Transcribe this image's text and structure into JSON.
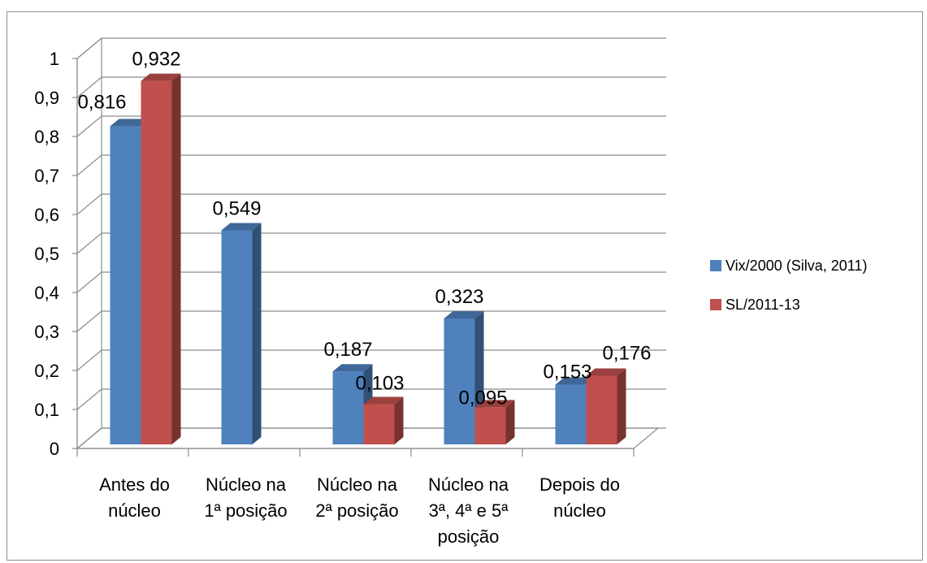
{
  "chart_data": {
    "type": "bar",
    "title": "",
    "xlabel": "",
    "ylabel": "",
    "ylim": [
      0,
      1
    ],
    "yticks": [
      "0",
      "0,1",
      "0,2",
      "0,3",
      "0,4",
      "0,5",
      "0,6",
      "0,7",
      "0,8",
      "0,9",
      "1"
    ],
    "categories": [
      [
        "Antes do",
        "núcleo"
      ],
      [
        "Núcleo na",
        "1ª posição"
      ],
      [
        "Núcleo na",
        "2ª posição"
      ],
      [
        "Núcleo na",
        "3ª, 4ª e 5ª",
        "posição"
      ],
      [
        "Depois do",
        "núcleo"
      ]
    ],
    "series": [
      {
        "name": "Vix/2000 (Silva, 2011)",
        "color": "#4F81BD",
        "values": [
          0.816,
          0.549,
          0.187,
          0.323,
          0.153
        ],
        "labels": [
          "0,816",
          "0,549",
          "0,187",
          "0,323",
          "0,153"
        ]
      },
      {
        "name": "SL/2011-13",
        "color": "#C0504D",
        "values": [
          0.932,
          null,
          0.103,
          0.095,
          0.176
        ],
        "labels": [
          "0,932",
          "",
          "0,103",
          "0,095",
          "0,176"
        ]
      }
    ],
    "grid": true,
    "legend": "right"
  }
}
